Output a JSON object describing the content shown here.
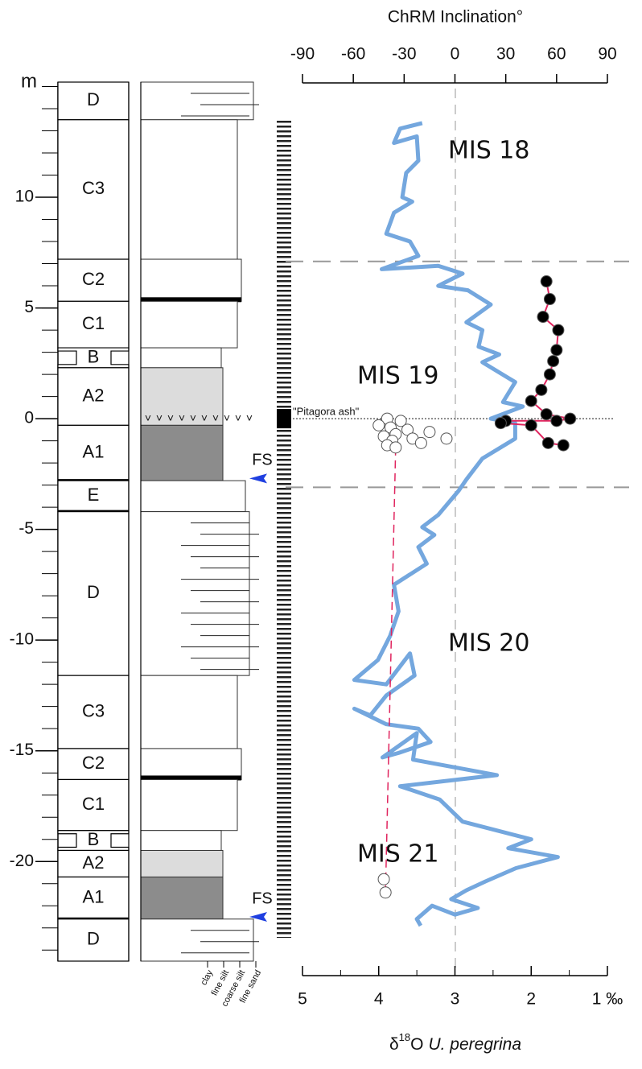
{
  "chart_data": {
    "type": "depth-profile",
    "y_axis": {
      "label": "m",
      "ylim": [
        -24.5,
        15.2
      ],
      "yticks": [
        -20,
        -15,
        -10,
        -5,
        0,
        5,
        10
      ]
    },
    "top_axis": {
      "label": "ChRM Inclination°",
      "xlim": [
        -90,
        90
      ],
      "xticks": [
        -90,
        -60,
        -30,
        0,
        30,
        60,
        90
      ]
    },
    "bottom_axis": {
      "label": {
        "prefix": "δ",
        "sup": "18",
        "main": "O",
        "species": "U. peregrina"
      },
      "xlim": [
        5,
        1
      ],
      "xticks": [
        5,
        4,
        3,
        2,
        {
          "value": 1,
          "label": "1 ‰"
        }
      ]
    },
    "units": [
      {
        "label": "D",
        "top": 15.2,
        "bottom": 13.5
      },
      {
        "label": "C3",
        "top": 13.5,
        "bottom": 7.2
      },
      {
        "label": "C2",
        "top": 7.2,
        "bottom": 5.3
      },
      {
        "label": "C1",
        "top": 5.3,
        "bottom": 3.2
      },
      {
        "label": "B",
        "top": 3.2,
        "bottom": 2.3
      },
      {
        "label": "A2",
        "top": 2.3,
        "bottom": -0.3
      },
      {
        "label": "A1",
        "top": -0.3,
        "bottom": -2.8
      },
      {
        "label": "E",
        "top": -2.8,
        "bottom": -4.2
      },
      {
        "label": "D",
        "top": -4.2,
        "bottom": -11.6
      },
      {
        "label": "C3",
        "top": -11.6,
        "bottom": -14.9
      },
      {
        "label": "C2",
        "top": -14.9,
        "bottom": -16.3
      },
      {
        "label": "C1",
        "top": -16.3,
        "bottom": -18.6
      },
      {
        "label": "B",
        "top": -18.6,
        "bottom": -19.5
      },
      {
        "label": "A2",
        "top": -19.5,
        "bottom": -20.7
      },
      {
        "label": "A1",
        "top": -20.7,
        "bottom": -22.6
      },
      {
        "label": "D",
        "top": -22.6,
        "bottom": -24.5
      }
    ],
    "grain_sizes": [
      "clay",
      "fine silt",
      "coarse silt",
      "fine sand"
    ],
    "fs_markers": [
      {
        "label": "FS",
        "depth": -2.7
      },
      {
        "label": "FS",
        "depth": -22.5
      }
    ],
    "ash": {
      "label": "\"Pitagora ash\"",
      "depth": 0
    },
    "mis_boundaries": [
      7.1,
      -3.1
    ],
    "annotations": [
      {
        "text": "MIS 18",
        "color": "#2f5597"
      },
      {
        "text": "MIS 19",
        "color": "#e8141e"
      },
      {
        "text": "MIS 20",
        "color": "#2f5597"
      },
      {
        "text": "MIS 21",
        "color": "#e8141e"
      }
    ],
    "d18o": {
      "color": "#74a7de",
      "depth": [
        13.35,
        13.1,
        12.45,
        12.75,
        11.65,
        11.1,
        10.0,
        9.8,
        9.3,
        8.35,
        8.0,
        7.35,
        6.75,
        6.9,
        6.55,
        6.0,
        5.8,
        5.15,
        4.35,
        4.0,
        3.25,
        2.9,
        2.55,
        1.65,
        0.75,
        0.55,
        0.0,
        -0.2,
        -0.9,
        -1.8,
        -2.75,
        -3.25,
        -4.35,
        -4.9,
        -5.25,
        -5.8,
        -6.55,
        -7.5,
        -8.7,
        -9.8,
        -10.9,
        -11.8,
        -12.0,
        -10.6,
        -11.6,
        -12.5,
        -13.4,
        -13.1,
        -13.8,
        -14.0,
        -14.6,
        -15.1,
        -15.3,
        -14.2,
        -15.4,
        -16.1,
        -16.6,
        -17.2,
        -18.2,
        -19.0,
        -19.4,
        -19.8,
        -20.3,
        -20.9,
        -21.3,
        -21.7,
        -22.1,
        -22.4,
        -22.0,
        -22.6,
        -22.9
      ],
      "values": [
        3.43,
        3.72,
        3.8,
        3.5,
        3.48,
        3.64,
        3.69,
        3.56,
        3.8,
        3.9,
        3.59,
        3.48,
        3.96,
        3.22,
        2.9,
        3.22,
        2.83,
        2.53,
        2.85,
        2.64,
        2.69,
        2.42,
        2.64,
        2.21,
        2.37,
        2.11,
        2.53,
        2.21,
        2.21,
        2.64,
        2.85,
        2.95,
        3.22,
        3.43,
        3.27,
        3.48,
        3.37,
        3.8,
        3.74,
        3.85,
        4.01,
        4.32,
        3.9,
        3.59,
        3.53,
        3.9,
        4.11,
        4.32,
        3.9,
        3.48,
        3.32,
        3.74,
        3.95,
        3.5,
        3.55,
        2.45,
        3.72,
        3.2,
        2.9,
        2.0,
        2.3,
        1.65,
        2.2,
        2.6,
        2.85,
        3.05,
        2.7,
        3.0,
        3.3,
        3.5,
        3.45
      ]
    },
    "inclination_normal": {
      "color": "#000000",
      "line_color": "#e0245e",
      "depth": [
        6.2,
        5.4,
        4.6,
        4.0,
        3.1,
        2.6,
        2.0,
        1.3,
        0.8,
        0.2,
        0.0,
        -0.1,
        -0.1,
        -0.2,
        -0.3,
        -1.1,
        -1.2
      ],
      "values": [
        54,
        56,
        52,
        61,
        60,
        58,
        56,
        51,
        45,
        54,
        68,
        60,
        30,
        27,
        45,
        55,
        64
      ]
    },
    "inclination_reversed": {
      "color": "#ffffff",
      "depth": [
        0.0,
        -0.1,
        -0.3,
        -0.4,
        -0.5,
        -0.6,
        -0.7,
        -0.8,
        -0.9,
        -0.9,
        -1.0,
        -1.1,
        -1.2,
        -1.3,
        -20.8,
        -21.4
      ],
      "values": [
        -40,
        -32,
        -45,
        -38,
        -28,
        -15,
        -35,
        -42,
        -25,
        -5,
        -37,
        -20,
        -40,
        -35,
        -42,
        -41
      ]
    }
  }
}
